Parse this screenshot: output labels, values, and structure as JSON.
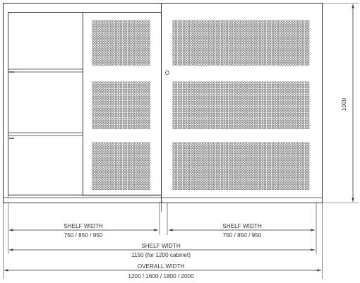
{
  "drawing": {
    "colors": {
      "ink": "#333333",
      "perforation": "#444444",
      "background": "#ffffff"
    },
    "dimensions": {
      "height_label": "1000",
      "shelf_left": {
        "title": "SHELF WIDTH",
        "values": "750 / 850 / 950"
      },
      "shelf_right": {
        "title": "SHELF WIDTH",
        "values": "750 / 850 / 950"
      },
      "shelf_full": {
        "title": "SHELF WIDTH",
        "values": "1150 (for 1200 cabinet)"
      },
      "overall": {
        "title": "OVERALL WIDTH",
        "values": "1200 / 1600 / 1800 / 2000"
      }
    }
  }
}
